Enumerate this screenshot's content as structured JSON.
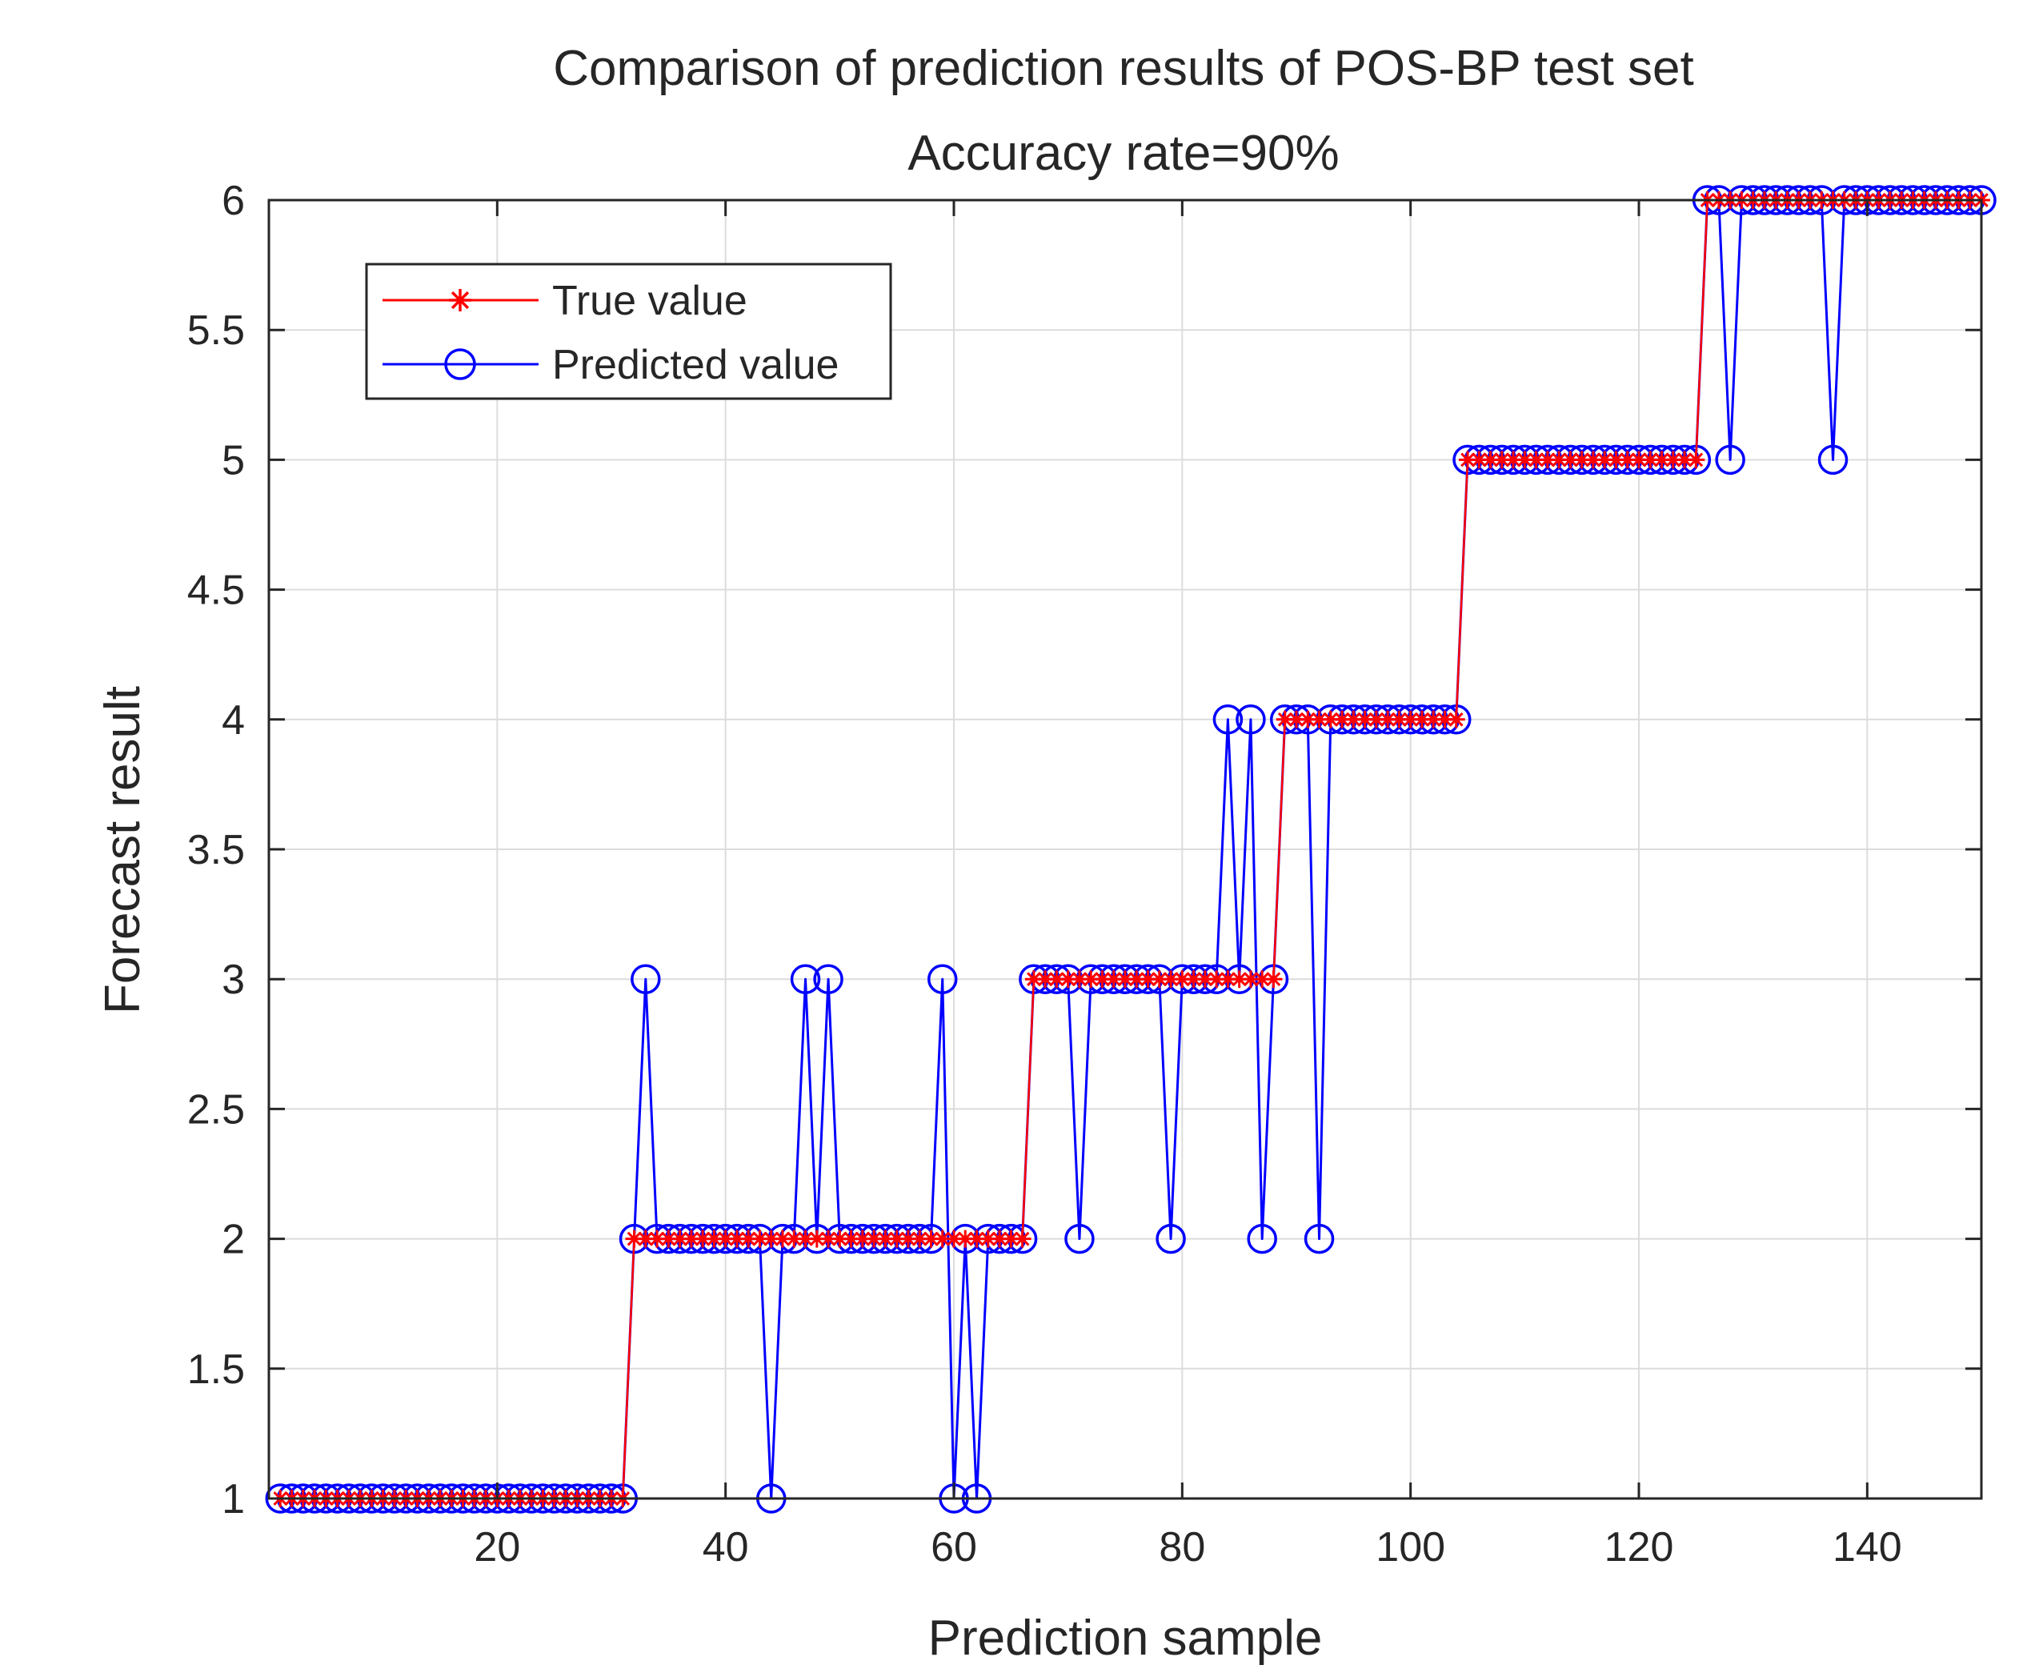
{
  "colors": {
    "true_series": "#ff0000",
    "predicted_series": "#0000ff",
    "axis": "#262626",
    "grid": "#dcdcdc",
    "background": "#ffffff"
  },
  "chart_data": {
    "type": "line",
    "title": "Comparison of prediction results of POS-BP test set",
    "subtitle": "Accuracy rate=90%",
    "xlabel": "Prediction sample",
    "ylabel": "Forecast result",
    "xlim": [
      0,
      150
    ],
    "ylim": [
      1,
      6
    ],
    "xticks": [
      20,
      40,
      60,
      80,
      100,
      120,
      140
    ],
    "yticks": [
      1,
      1.5,
      2,
      2.5,
      3,
      3.5,
      4,
      4.5,
      5,
      5.5,
      6
    ],
    "grid": true,
    "legend_position": "top-left",
    "series": [
      {
        "name": "True value",
        "marker": "star",
        "color": "#ff0000",
        "x": [
          1,
          2,
          3,
          4,
          5,
          6,
          7,
          8,
          9,
          10,
          11,
          12,
          13,
          14,
          15,
          16,
          17,
          18,
          19,
          20,
          21,
          22,
          23,
          24,
          25,
          26,
          27,
          28,
          29,
          30,
          31,
          32,
          33,
          34,
          35,
          36,
          37,
          38,
          39,
          40,
          41,
          42,
          43,
          44,
          45,
          46,
          47,
          48,
          49,
          50,
          51,
          52,
          53,
          54,
          55,
          56,
          57,
          58,
          59,
          60,
          61,
          62,
          63,
          64,
          65,
          66,
          67,
          68,
          69,
          70,
          71,
          72,
          73,
          74,
          75,
          76,
          77,
          78,
          79,
          80,
          81,
          82,
          83,
          84,
          85,
          86,
          87,
          88,
          89,
          90,
          91,
          92,
          93,
          94,
          95,
          96,
          97,
          98,
          99,
          100,
          101,
          102,
          103,
          104,
          105,
          106,
          107,
          108,
          109,
          110,
          111,
          112,
          113,
          114,
          115,
          116,
          117,
          118,
          119,
          120,
          121,
          122,
          123,
          124,
          125,
          126,
          127,
          128,
          129,
          130,
          131,
          132,
          133,
          134,
          135,
          136,
          137,
          138,
          139,
          140,
          141,
          142,
          143,
          144,
          145,
          146,
          147,
          148,
          149,
          150
        ],
        "values": [
          1,
          1,
          1,
          1,
          1,
          1,
          1,
          1,
          1,
          1,
          1,
          1,
          1,
          1,
          1,
          1,
          1,
          1,
          1,
          1,
          1,
          1,
          1,
          1,
          1,
          1,
          1,
          1,
          1,
          1,
          1,
          2,
          2,
          2,
          2,
          2,
          2,
          2,
          2,
          2,
          2,
          2,
          2,
          2,
          2,
          2,
          2,
          2,
          2,
          2,
          2,
          2,
          2,
          2,
          2,
          2,
          2,
          2,
          2,
          2,
          2,
          2,
          2,
          2,
          2,
          2,
          3,
          3,
          3,
          3,
          3,
          3,
          3,
          3,
          3,
          3,
          3,
          3,
          3,
          3,
          3,
          3,
          3,
          3,
          3,
          3,
          3,
          3,
          4,
          4,
          4,
          4,
          4,
          4,
          4,
          4,
          4,
          4,
          4,
          4,
          4,
          4,
          4,
          4,
          5,
          5,
          5,
          5,
          5,
          5,
          5,
          5,
          5,
          5,
          5,
          5,
          5,
          5,
          5,
          5,
          5,
          5,
          5,
          5,
          5,
          6,
          6,
          6,
          6,
          6,
          6,
          6,
          6,
          6,
          6,
          6,
          6,
          6,
          6,
          6,
          6,
          6,
          6,
          6,
          6,
          6,
          6,
          6,
          6,
          6
        ]
      },
      {
        "name": "Predicted value",
        "marker": "circle",
        "color": "#0000ff",
        "x": [
          1,
          2,
          3,
          4,
          5,
          6,
          7,
          8,
          9,
          10,
          11,
          12,
          13,
          14,
          15,
          16,
          17,
          18,
          19,
          20,
          21,
          22,
          23,
          24,
          25,
          26,
          27,
          28,
          29,
          30,
          31,
          32,
          33,
          34,
          35,
          36,
          37,
          38,
          39,
          40,
          41,
          42,
          43,
          44,
          45,
          46,
          47,
          48,
          49,
          50,
          51,
          52,
          53,
          54,
          55,
          56,
          57,
          58,
          59,
          60,
          61,
          62,
          63,
          64,
          65,
          66,
          67,
          68,
          69,
          70,
          71,
          72,
          73,
          74,
          75,
          76,
          77,
          78,
          79,
          80,
          81,
          82,
          83,
          84,
          85,
          86,
          87,
          88,
          89,
          90,
          91,
          92,
          93,
          94,
          95,
          96,
          97,
          98,
          99,
          100,
          101,
          102,
          103,
          104,
          105,
          106,
          107,
          108,
          109,
          110,
          111,
          112,
          113,
          114,
          115,
          116,
          117,
          118,
          119,
          120,
          121,
          122,
          123,
          124,
          125,
          126,
          127,
          128,
          129,
          130,
          131,
          132,
          133,
          134,
          135,
          136,
          137,
          138,
          139,
          140,
          141,
          142,
          143,
          144,
          145,
          146,
          147,
          148,
          149,
          150
        ],
        "values": [
          1,
          1,
          1,
          1,
          1,
          1,
          1,
          1,
          1,
          1,
          1,
          1,
          1,
          1,
          1,
          1,
          1,
          1,
          1,
          1,
          1,
          1,
          1,
          1,
          1,
          1,
          1,
          1,
          1,
          1,
          1,
          2,
          3,
          2,
          2,
          2,
          2,
          2,
          2,
          2,
          2,
          2,
          2,
          1,
          2,
          2,
          3,
          2,
          3,
          2,
          2,
          2,
          2,
          2,
          2,
          2,
          2,
          2,
          3,
          1,
          2,
          1,
          2,
          2,
          2,
          2,
          3,
          3,
          3,
          3,
          2,
          3,
          3,
          3,
          3,
          3,
          3,
          3,
          2,
          3,
          3,
          3,
          3,
          4,
          3,
          4,
          2,
          3,
          4,
          4,
          4,
          2,
          4,
          4,
          4,
          4,
          4,
          4,
          4,
          4,
          4,
          4,
          4,
          4,
          5,
          5,
          5,
          5,
          5,
          5,
          5,
          5,
          5,
          5,
          5,
          5,
          5,
          5,
          5,
          5,
          5,
          5,
          5,
          5,
          5,
          6,
          6,
          5,
          6,
          6,
          6,
          6,
          6,
          6,
          6,
          6,
          5,
          6,
          6,
          6,
          6,
          6,
          6,
          6,
          6,
          6,
          6,
          6,
          6,
          6
        ]
      }
    ]
  }
}
